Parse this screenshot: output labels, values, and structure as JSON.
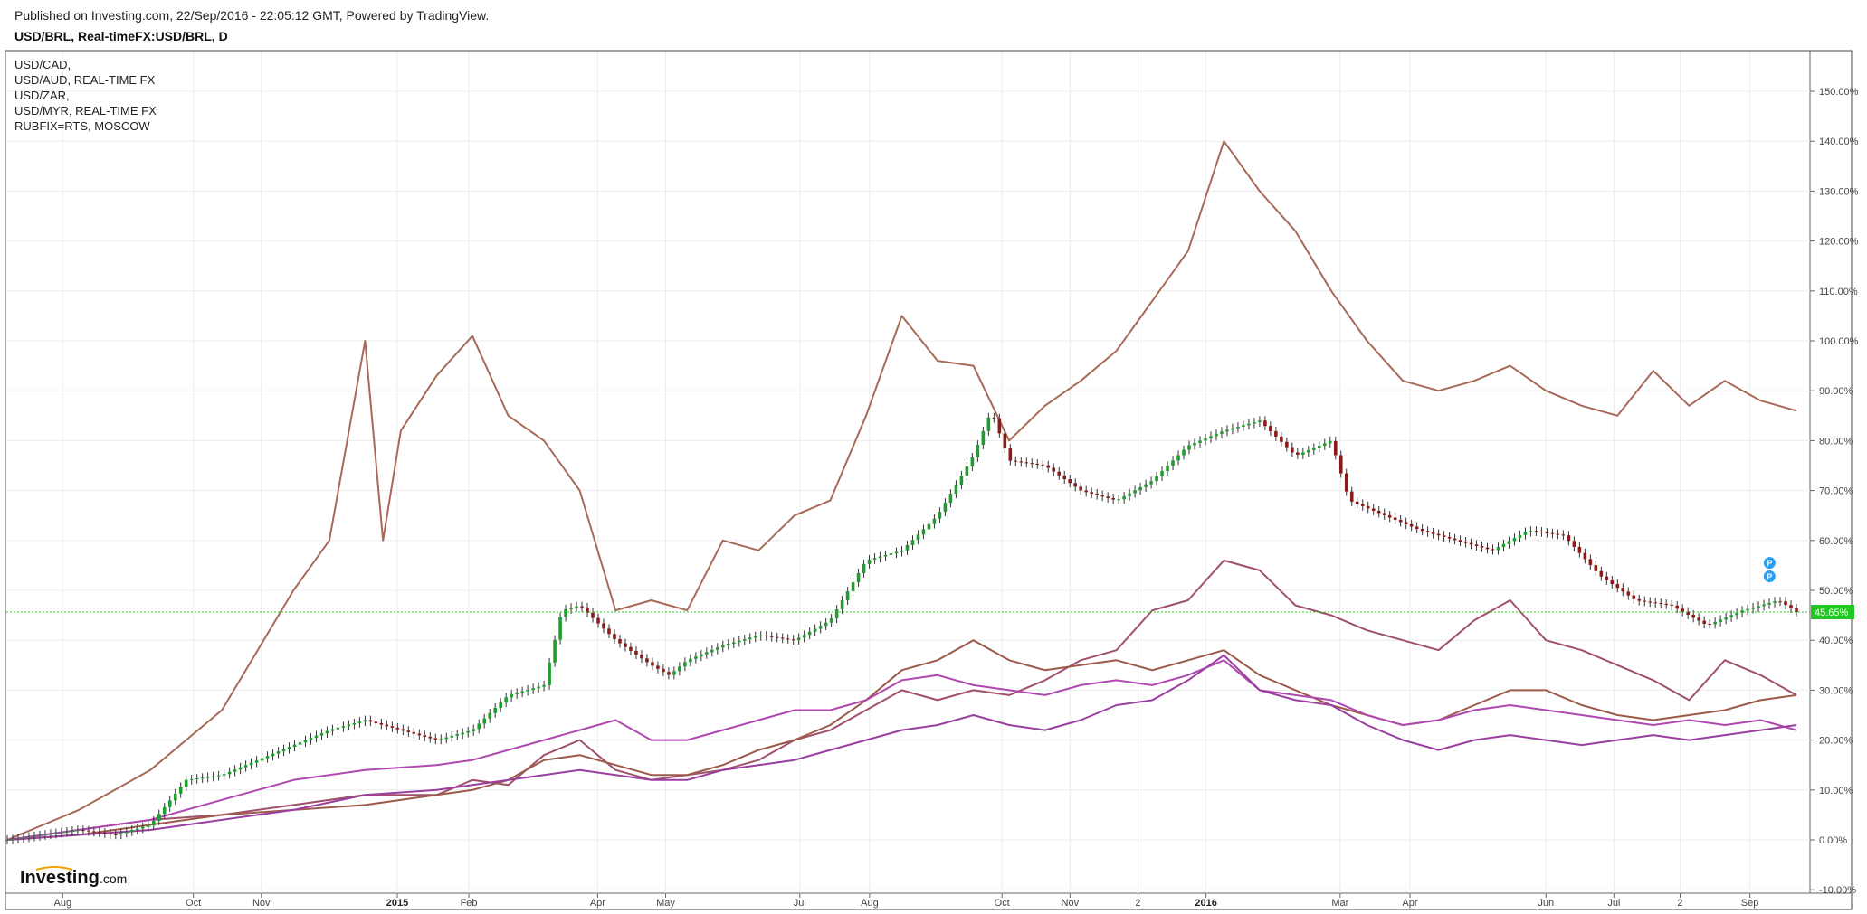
{
  "header": {
    "published": "Published on Investing.com, 22/Sep/2016 - 22:05:12 GMT, Powered by TradingView.",
    "symbol": "USD/BRL, Real-timeFX:USD/BRL, D"
  },
  "legend": [
    "USD/CAD,",
    "USD/AUD, REAL-TIME FX",
    "USD/ZAR,",
    "USD/MYR, REAL-TIME FX",
    "RUBFIX=RTS, MOSCOW"
  ],
  "logo": {
    "main": "Investing",
    "suffix": ".com"
  },
  "colors": {
    "up_candle": "#1e9e2e",
    "down_candle": "#8b1a1a",
    "rub": "#a86a58",
    "zar": "#a0506a",
    "aud": "#9b5a4a",
    "cad": "#b048b0",
    "myr": "#9a3fa0",
    "last_price_bg": "#22c722",
    "marker": "#2a9df4"
  },
  "chart_data": {
    "type": "line",
    "y_unit": "%",
    "ylim": [
      -10,
      155
    ],
    "y_ticks": [
      "150.00%",
      "140.00%",
      "130.00%",
      "120.00%",
      "110.00%",
      "100.00%",
      "90.00%",
      "80.00%",
      "70.00%",
      "60.00%",
      "50.00%",
      "40.00%",
      "30.00%",
      "20.00%",
      "10.00%",
      "0.00%",
      "-10.00%"
    ],
    "x_ticks": [
      {
        "label": "Aug",
        "bold": false,
        "t": 0.031
      },
      {
        "label": "Oct",
        "bold": false,
        "t": 0.104
      },
      {
        "label": "Nov",
        "bold": false,
        "t": 0.142
      },
      {
        "label": "2015",
        "bold": true,
        "t": 0.218
      },
      {
        "label": "Feb",
        "bold": false,
        "t": 0.258
      },
      {
        "label": "Apr",
        "bold": false,
        "t": 0.33
      },
      {
        "label": "May",
        "bold": false,
        "t": 0.368
      },
      {
        "label": "Jul",
        "bold": false,
        "t": 0.443
      },
      {
        "label": "Aug",
        "bold": false,
        "t": 0.482
      },
      {
        "label": "Oct",
        "bold": false,
        "t": 0.556
      },
      {
        "label": "Nov",
        "bold": false,
        "t": 0.594
      },
      {
        "label": "2",
        "bold": false,
        "t": 0.632
      },
      {
        "label": "2016",
        "bold": true,
        "t": 0.67
      },
      {
        "label": "Mar",
        "bold": false,
        "t": 0.745
      },
      {
        "label": "Apr",
        "bold": false,
        "t": 0.784
      },
      {
        "label": "Jun",
        "bold": false,
        "t": 0.86
      },
      {
        "label": "Jul",
        "bold": false,
        "t": 0.898
      },
      {
        "label": "2",
        "bold": false,
        "t": 0.935
      },
      {
        "label": "Sep",
        "bold": false,
        "t": 0.974
      }
    ],
    "last_value_label": "45.65%",
    "last_value": 45.65,
    "markers": [
      "P",
      "P"
    ],
    "series": [
      {
        "name": "USD/BRL",
        "style": "candles",
        "points": [
          [
            0,
            0
          ],
          [
            0.02,
            1
          ],
          [
            0.04,
            2
          ],
          [
            0.06,
            1
          ],
          [
            0.08,
            3
          ],
          [
            0.1,
            12
          ],
          [
            0.12,
            13
          ],
          [
            0.14,
            16
          ],
          [
            0.16,
            19
          ],
          [
            0.18,
            22
          ],
          [
            0.2,
            24
          ],
          [
            0.22,
            22
          ],
          [
            0.24,
            20
          ],
          [
            0.26,
            22
          ],
          [
            0.28,
            29
          ],
          [
            0.3,
            31
          ],
          [
            0.31,
            46
          ],
          [
            0.32,
            47
          ],
          [
            0.34,
            40
          ],
          [
            0.36,
            35
          ],
          [
            0.37,
            33
          ],
          [
            0.38,
            36
          ],
          [
            0.4,
            39
          ],
          [
            0.42,
            41
          ],
          [
            0.44,
            40
          ],
          [
            0.46,
            44
          ],
          [
            0.48,
            56
          ],
          [
            0.5,
            58
          ],
          [
            0.52,
            65
          ],
          [
            0.54,
            77
          ],
          [
            0.55,
            86
          ],
          [
            0.56,
            76
          ],
          [
            0.58,
            75
          ],
          [
            0.6,
            70
          ],
          [
            0.62,
            68
          ],
          [
            0.64,
            72
          ],
          [
            0.66,
            79
          ],
          [
            0.68,
            82
          ],
          [
            0.7,
            84
          ],
          [
            0.72,
            77
          ],
          [
            0.74,
            80
          ],
          [
            0.75,
            68
          ],
          [
            0.77,
            65
          ],
          [
            0.79,
            62
          ],
          [
            0.81,
            60
          ],
          [
            0.83,
            58
          ],
          [
            0.85,
            62
          ],
          [
            0.87,
            61
          ],
          [
            0.89,
            53
          ],
          [
            0.91,
            48
          ],
          [
            0.93,
            47
          ],
          [
            0.95,
            43
          ],
          [
            0.97,
            46
          ],
          [
            0.99,
            48
          ],
          [
            1.0,
            45.65
          ]
        ]
      },
      {
        "name": "RUBFIX=RTS, MOSCOW",
        "style": "line",
        "points": [
          [
            0,
            0
          ],
          [
            0.04,
            6
          ],
          [
            0.08,
            14
          ],
          [
            0.12,
            26
          ],
          [
            0.16,
            50
          ],
          [
            0.18,
            60
          ],
          [
            0.2,
            100
          ],
          [
            0.21,
            60
          ],
          [
            0.22,
            82
          ],
          [
            0.24,
            93
          ],
          [
            0.26,
            101
          ],
          [
            0.28,
            85
          ],
          [
            0.3,
            80
          ],
          [
            0.32,
            70
          ],
          [
            0.34,
            46
          ],
          [
            0.36,
            48
          ],
          [
            0.38,
            46
          ],
          [
            0.4,
            60
          ],
          [
            0.42,
            58
          ],
          [
            0.44,
            65
          ],
          [
            0.46,
            68
          ],
          [
            0.48,
            85
          ],
          [
            0.5,
            105
          ],
          [
            0.52,
            96
          ],
          [
            0.54,
            95
          ],
          [
            0.56,
            80
          ],
          [
            0.58,
            87
          ],
          [
            0.6,
            92
          ],
          [
            0.62,
            98
          ],
          [
            0.64,
            108
          ],
          [
            0.66,
            118
          ],
          [
            0.68,
            140
          ],
          [
            0.7,
            130
          ],
          [
            0.72,
            122
          ],
          [
            0.74,
            110
          ],
          [
            0.76,
            100
          ],
          [
            0.78,
            92
          ],
          [
            0.8,
            90
          ],
          [
            0.82,
            92
          ],
          [
            0.84,
            95
          ],
          [
            0.86,
            90
          ],
          [
            0.88,
            87
          ],
          [
            0.9,
            85
          ],
          [
            0.92,
            94
          ],
          [
            0.94,
            87
          ],
          [
            0.96,
            92
          ],
          [
            0.98,
            88
          ],
          [
            1.0,
            86
          ]
        ]
      },
      {
        "name": "USD/ZAR,",
        "style": "line",
        "points": [
          [
            0,
            0
          ],
          [
            0.04,
            2
          ],
          [
            0.08,
            4
          ],
          [
            0.12,
            5
          ],
          [
            0.16,
            7
          ],
          [
            0.2,
            9
          ],
          [
            0.24,
            9
          ],
          [
            0.26,
            12
          ],
          [
            0.28,
            11
          ],
          [
            0.3,
            17
          ],
          [
            0.32,
            20
          ],
          [
            0.34,
            14
          ],
          [
            0.36,
            12
          ],
          [
            0.38,
            13
          ],
          [
            0.4,
            14
          ],
          [
            0.42,
            16
          ],
          [
            0.44,
            20
          ],
          [
            0.46,
            22
          ],
          [
            0.48,
            26
          ],
          [
            0.5,
            30
          ],
          [
            0.52,
            28
          ],
          [
            0.54,
            30
          ],
          [
            0.56,
            29
          ],
          [
            0.58,
            32
          ],
          [
            0.6,
            36
          ],
          [
            0.62,
            38
          ],
          [
            0.64,
            46
          ],
          [
            0.66,
            48
          ],
          [
            0.68,
            56
          ],
          [
            0.7,
            54
          ],
          [
            0.72,
            47
          ],
          [
            0.74,
            45
          ],
          [
            0.76,
            42
          ],
          [
            0.78,
            40
          ],
          [
            0.8,
            38
          ],
          [
            0.82,
            44
          ],
          [
            0.84,
            48
          ],
          [
            0.86,
            40
          ],
          [
            0.88,
            38
          ],
          [
            0.9,
            35
          ],
          [
            0.92,
            32
          ],
          [
            0.94,
            28
          ],
          [
            0.96,
            36
          ],
          [
            0.98,
            33
          ],
          [
            1.0,
            29
          ]
        ]
      },
      {
        "name": "USD/AUD, REAL-TIME FX",
        "style": "line",
        "points": [
          [
            0,
            0
          ],
          [
            0.04,
            1
          ],
          [
            0.08,
            3
          ],
          [
            0.12,
            5
          ],
          [
            0.16,
            6
          ],
          [
            0.2,
            7
          ],
          [
            0.24,
            9
          ],
          [
            0.26,
            10
          ],
          [
            0.28,
            12
          ],
          [
            0.3,
            16
          ],
          [
            0.32,
            17
          ],
          [
            0.34,
            15
          ],
          [
            0.36,
            13
          ],
          [
            0.38,
            13
          ],
          [
            0.4,
            15
          ],
          [
            0.42,
            18
          ],
          [
            0.44,
            20
          ],
          [
            0.46,
            23
          ],
          [
            0.48,
            28
          ],
          [
            0.5,
            34
          ],
          [
            0.52,
            36
          ],
          [
            0.54,
            40
          ],
          [
            0.56,
            36
          ],
          [
            0.58,
            34
          ],
          [
            0.6,
            35
          ],
          [
            0.62,
            36
          ],
          [
            0.64,
            34
          ],
          [
            0.66,
            36
          ],
          [
            0.68,
            38
          ],
          [
            0.7,
            33
          ],
          [
            0.72,
            30
          ],
          [
            0.74,
            27
          ],
          [
            0.76,
            25
          ],
          [
            0.78,
            23
          ],
          [
            0.8,
            24
          ],
          [
            0.82,
            27
          ],
          [
            0.84,
            30
          ],
          [
            0.86,
            30
          ],
          [
            0.88,
            27
          ],
          [
            0.9,
            25
          ],
          [
            0.92,
            24
          ],
          [
            0.94,
            25
          ],
          [
            0.96,
            26
          ],
          [
            0.98,
            28
          ],
          [
            1.0,
            29
          ]
        ]
      },
      {
        "name": "USD/CAD,",
        "style": "line",
        "points": [
          [
            0,
            0
          ],
          [
            0.04,
            2
          ],
          [
            0.08,
            4
          ],
          [
            0.12,
            8
          ],
          [
            0.16,
            12
          ],
          [
            0.2,
            14
          ],
          [
            0.24,
            15
          ],
          [
            0.26,
            16
          ],
          [
            0.28,
            18
          ],
          [
            0.3,
            20
          ],
          [
            0.32,
            22
          ],
          [
            0.34,
            24
          ],
          [
            0.36,
            20
          ],
          [
            0.38,
            20
          ],
          [
            0.4,
            22
          ],
          [
            0.42,
            24
          ],
          [
            0.44,
            26
          ],
          [
            0.46,
            26
          ],
          [
            0.48,
            28
          ],
          [
            0.5,
            32
          ],
          [
            0.52,
            33
          ],
          [
            0.54,
            31
          ],
          [
            0.56,
            30
          ],
          [
            0.58,
            29
          ],
          [
            0.6,
            31
          ],
          [
            0.62,
            32
          ],
          [
            0.64,
            31
          ],
          [
            0.66,
            33
          ],
          [
            0.68,
            36
          ],
          [
            0.7,
            30
          ],
          [
            0.72,
            29
          ],
          [
            0.74,
            28
          ],
          [
            0.76,
            25
          ],
          [
            0.78,
            23
          ],
          [
            0.8,
            24
          ],
          [
            0.82,
            26
          ],
          [
            0.84,
            27
          ],
          [
            0.86,
            26
          ],
          [
            0.88,
            25
          ],
          [
            0.9,
            24
          ],
          [
            0.92,
            23
          ],
          [
            0.94,
            24
          ],
          [
            0.96,
            23
          ],
          [
            0.98,
            24
          ],
          [
            1.0,
            22
          ]
        ]
      },
      {
        "name": "USD/MYR, REAL-TIME FX",
        "style": "line",
        "points": [
          [
            0,
            0
          ],
          [
            0.04,
            1
          ],
          [
            0.08,
            2
          ],
          [
            0.12,
            4
          ],
          [
            0.16,
            6
          ],
          [
            0.2,
            9
          ],
          [
            0.24,
            10
          ],
          [
            0.26,
            11
          ],
          [
            0.28,
            12
          ],
          [
            0.3,
            13
          ],
          [
            0.32,
            14
          ],
          [
            0.34,
            13
          ],
          [
            0.36,
            12
          ],
          [
            0.38,
            12
          ],
          [
            0.4,
            14
          ],
          [
            0.42,
            15
          ],
          [
            0.44,
            16
          ],
          [
            0.46,
            18
          ],
          [
            0.48,
            20
          ],
          [
            0.5,
            22
          ],
          [
            0.52,
            23
          ],
          [
            0.54,
            25
          ],
          [
            0.56,
            23
          ],
          [
            0.58,
            22
          ],
          [
            0.6,
            24
          ],
          [
            0.62,
            27
          ],
          [
            0.64,
            28
          ],
          [
            0.66,
            32
          ],
          [
            0.68,
            37
          ],
          [
            0.7,
            30
          ],
          [
            0.72,
            28
          ],
          [
            0.74,
            27
          ],
          [
            0.76,
            23
          ],
          [
            0.78,
            20
          ],
          [
            0.8,
            18
          ],
          [
            0.82,
            20
          ],
          [
            0.84,
            21
          ],
          [
            0.86,
            20
          ],
          [
            0.88,
            19
          ],
          [
            0.9,
            20
          ],
          [
            0.92,
            21
          ],
          [
            0.94,
            20
          ],
          [
            0.96,
            21
          ],
          [
            0.98,
            22
          ],
          [
            1.0,
            23
          ]
        ]
      }
    ]
  }
}
